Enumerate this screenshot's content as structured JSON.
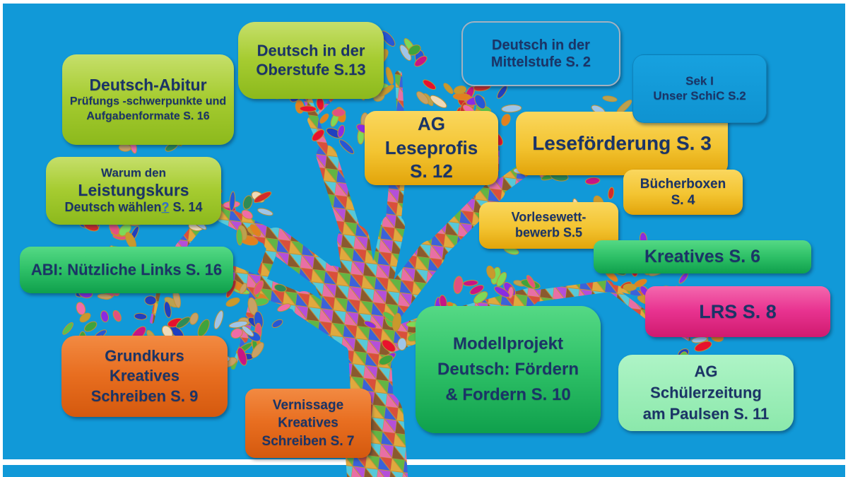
{
  "slide": {
    "background_color": "#1199D8",
    "margin_color": "#FFFFFF",
    "text_color": "#1B3467",
    "link_color": "#2F6FD0"
  },
  "boxes": {
    "abitur": {
      "title": "Deutsch-Abitur",
      "subtitle": "Prüfungs -schwerpunkte und Aufgabenformate S. 16",
      "color": "#A6CC31"
    },
    "oberstufe": {
      "label": "Deutsch in der Oberstufe S.13",
      "color": "#A6CC31"
    },
    "mittelstufe": {
      "label": "Deutsch in der Mittelstufe S. 2",
      "color": "#1199D8"
    },
    "sek1": {
      "line1": "Sek I",
      "line2": "Unser SchiC S.2",
      "color": "#1199D8"
    },
    "leseprofis": {
      "line1": "AG",
      "line2": "Leseprofis",
      "line3": "S. 12",
      "color": "#F3C431"
    },
    "lesefoerderung": {
      "label": "Leseförderung S. 3",
      "color": "#F3C431"
    },
    "buecherboxen": {
      "line1": "Bücherboxen",
      "line2": "S. 4",
      "color": "#F3C431"
    },
    "leistungskurs": {
      "line1": "Warum den",
      "line2": "Leistungskurs",
      "line3_pre": "Deutsch wählen",
      "line3_link": "?",
      "line3_post": " S. 14",
      "color": "#A6CC31"
    },
    "vorlesewettbewerb": {
      "line1": "Vorlesewett-",
      "line2": "bewerb S.5",
      "color": "#F3C431"
    },
    "kreatives": {
      "label": "Kreatives S. 6",
      "color": "#2FC168"
    },
    "abi_links": {
      "label": "ABI: Nützliche Links S. 16",
      "color": "#2FC168"
    },
    "lrs": {
      "label": "LRS S. 8",
      "color": "#E83390"
    },
    "grundkurs": {
      "line1": "Grundkurs",
      "line2": "Kreatives",
      "line3": "Schreiben S. 9",
      "color": "#E86E20"
    },
    "modellprojekt": {
      "line1": "Modellprojekt",
      "line2": "Deutsch: Fördern",
      "line3": "& Fordern S. 10",
      "color": "#2FC168"
    },
    "schuelerzeitung": {
      "line1": "AG",
      "line2": "Schülerzeitung",
      "line3": "am Paulsen S. 11",
      "color": "#8BE8AB"
    },
    "vernissage": {
      "line1": "Vernissage",
      "line2": "Kreatives",
      "line3": "Schreiben S. 7",
      "color": "#E86E20"
    }
  },
  "tree": {
    "outline": "#C19235",
    "leaf_colors": [
      "#D22B2B",
      "#E8112D",
      "#3FA33C",
      "#7ED957",
      "#C9992C",
      "#C8A165",
      "#BBA14F",
      "#F06CA8",
      "#E4517F",
      "#2557D6",
      "#1F3FBF",
      "#8A2BE2",
      "#E2801F",
      "#2E8B57",
      "#C71585",
      "#9FC5E8",
      "#EFDAB8",
      "#58C14D"
    ],
    "mosaic_colors": [
      "#D94F3C",
      "#3B62D9",
      "#62B544",
      "#E0A93E",
      "#B44FD9",
      "#E86FA5",
      "#57C8D8",
      "#8A5A2E",
      "#EFE06A",
      "#2E9E6B",
      "#C62E6E",
      "#1F3FBF"
    ]
  }
}
